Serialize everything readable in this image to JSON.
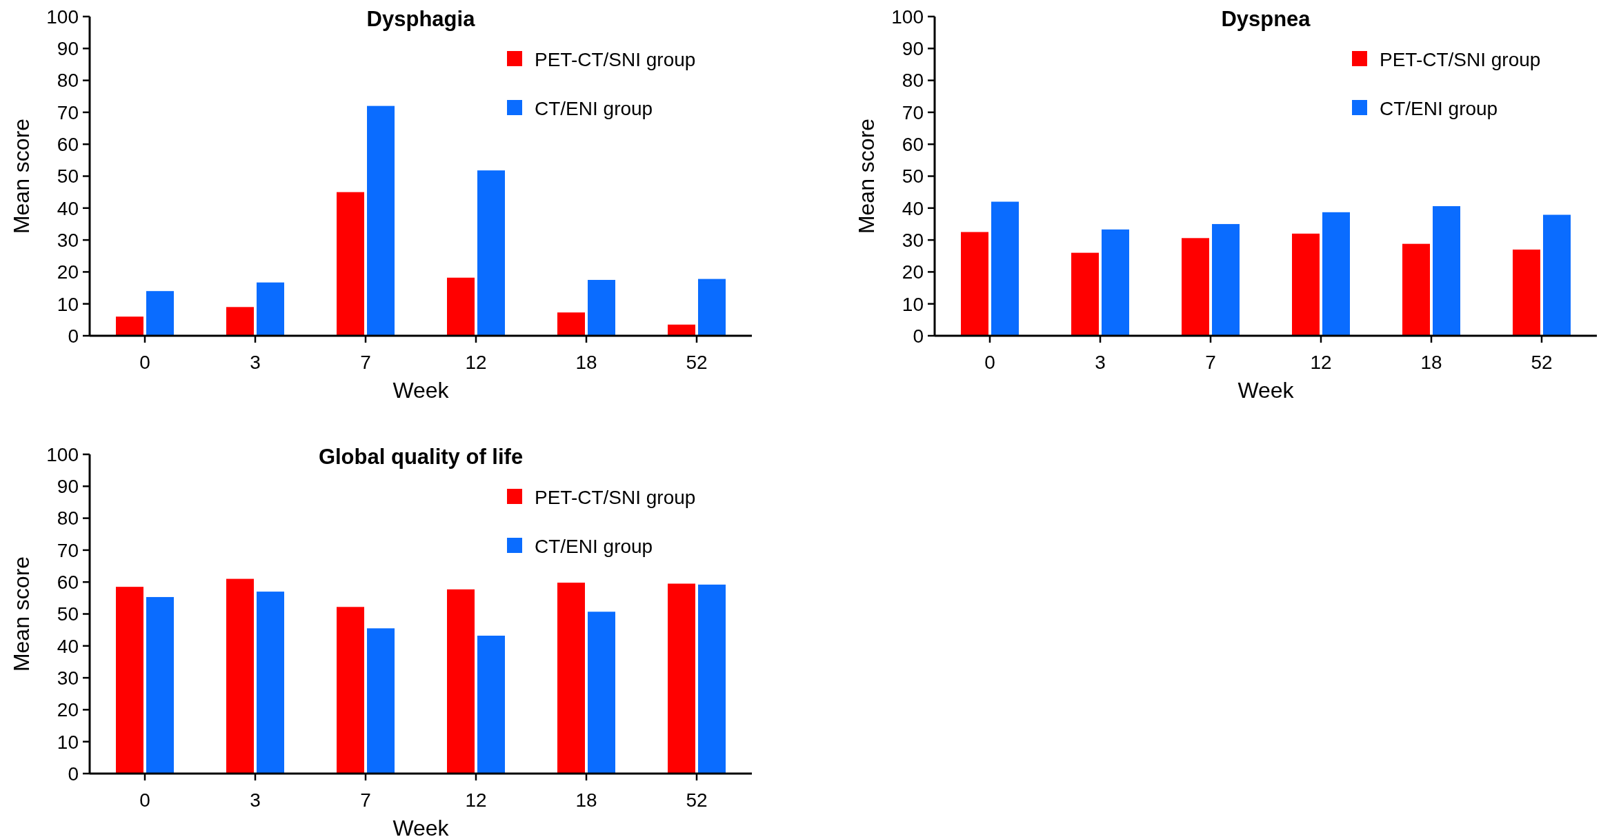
{
  "chart_data": [
    {
      "type": "bar",
      "title": "Dysphagia",
      "xlabel": "Week",
      "ylabel": "Mean score",
      "categories": [
        "0",
        "3",
        "7",
        "12",
        "18",
        "52"
      ],
      "ylim": [
        0,
        100
      ],
      "yticks": [
        0,
        10,
        20,
        30,
        40,
        50,
        60,
        70,
        80,
        90,
        100
      ],
      "grid": false,
      "legend": "top right",
      "series": [
        {
          "name": "PET-CT/SNI group",
          "color": "#ff0000",
          "values": [
            6,
            9,
            45,
            18.2,
            7.3,
            3.5
          ]
        },
        {
          "name": "CT/ENI group",
          "color": "#0a6cff",
          "values": [
            14,
            16.7,
            72,
            51.8,
            17.5,
            17.8
          ]
        }
      ]
    },
    {
      "type": "bar",
      "title": "Dyspnea",
      "xlabel": "Week",
      "ylabel": "Mean score",
      "categories": [
        "0",
        "3",
        "7",
        "12",
        "18",
        "52"
      ],
      "ylim": [
        0,
        100
      ],
      "yticks": [
        0,
        10,
        20,
        30,
        40,
        50,
        60,
        70,
        80,
        90,
        100
      ],
      "grid": false,
      "legend": "top right",
      "series": [
        {
          "name": "PET-CT/SNI group",
          "color": "#ff0000",
          "values": [
            32.5,
            26,
            30.6,
            32,
            28.8,
            27
          ]
        },
        {
          "name": "CT/ENI group",
          "color": "#0a6cff",
          "values": [
            42,
            33.3,
            35,
            38.7,
            40.6,
            37.9
          ]
        }
      ]
    },
    {
      "type": "bar",
      "title": "Global quality of life",
      "xlabel": "Week",
      "ylabel": "Mean score",
      "categories": [
        "0",
        "3",
        "7",
        "12",
        "18",
        "52"
      ],
      "ylim": [
        0,
        100
      ],
      "yticks": [
        0,
        10,
        20,
        30,
        40,
        50,
        60,
        70,
        80,
        90,
        100
      ],
      "grid": false,
      "legend": "top right",
      "series": [
        {
          "name": "PET-CT/SNI group",
          "color": "#ff0000",
          "values": [
            58.5,
            61,
            52.2,
            57.7,
            59.8,
            59.5
          ]
        },
        {
          "name": "CT/ENI group",
          "color": "#0a6cff",
          "values": [
            55.3,
            57,
            45.5,
            43.2,
            50.7,
            59.2
          ]
        }
      ]
    }
  ]
}
